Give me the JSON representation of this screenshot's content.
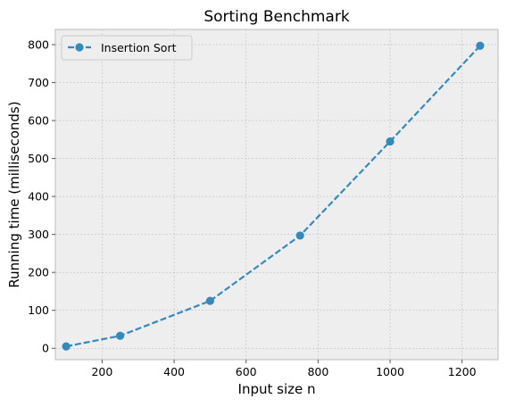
{
  "chart_data": {
    "type": "line",
    "title": "Sorting Benchmark",
    "xlabel": "Input size n",
    "ylabel": "Running time (milliseconds)",
    "xlim": [
      70,
      1300
    ],
    "ylim": [
      -30,
      840
    ],
    "x_ticks": [
      200,
      400,
      600,
      800,
      1000,
      1200
    ],
    "y_ticks": [
      0,
      100,
      200,
      300,
      400,
      500,
      600,
      700,
      800
    ],
    "grid": true,
    "legend_position": "upper-left",
    "series": [
      {
        "name": "Insertion Sort",
        "x": [
          100,
          250,
          500,
          750,
          1000,
          1250
        ],
        "y": [
          5,
          33,
          125,
          297,
          545,
          797
        ],
        "color": "#348ABD",
        "linestyle": "dashed",
        "marker": "circle"
      }
    ],
    "style": {
      "plot_background": "#EEEEEE",
      "grid_color": "#B2B2B2",
      "spine_color": "#BCBCBC",
      "text_color": "#000000"
    }
  }
}
